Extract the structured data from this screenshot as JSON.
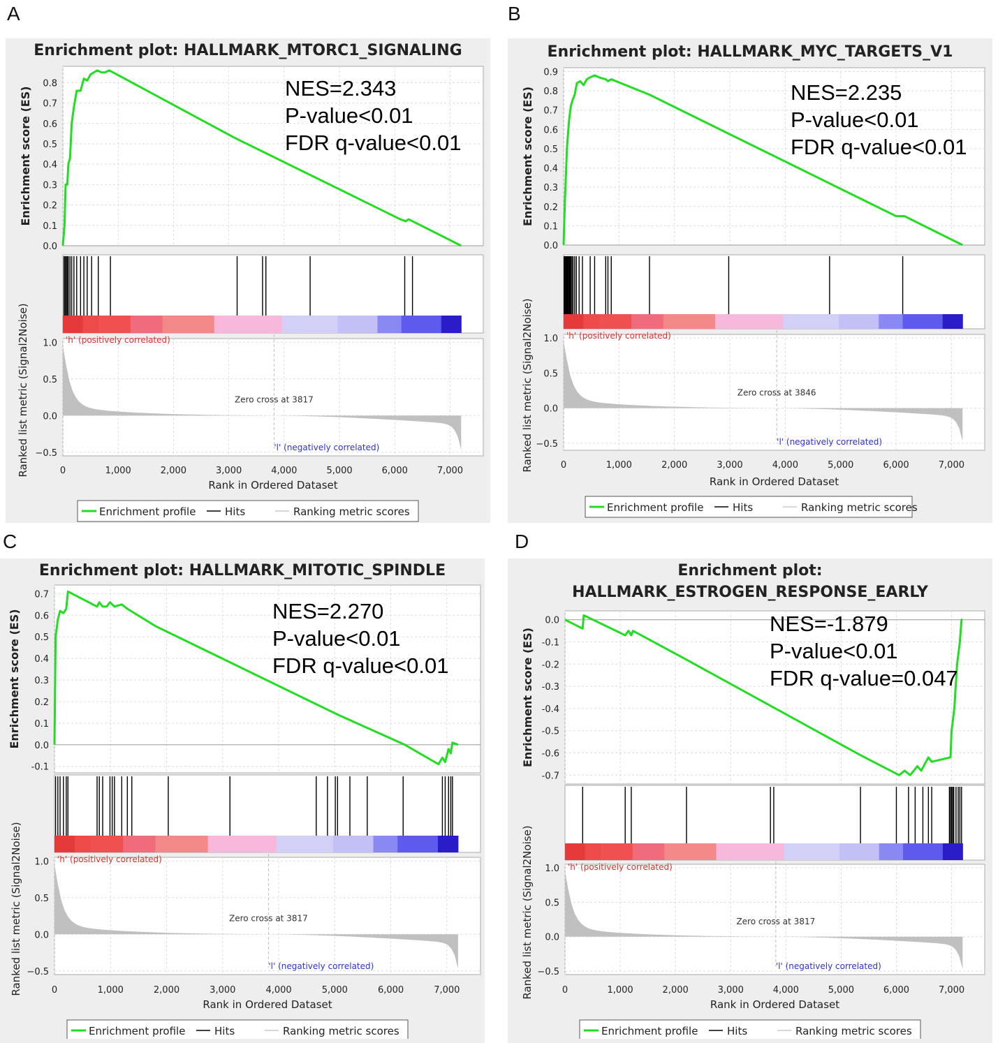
{
  "legend": {
    "enrichment_profile": "Enrichment profile",
    "hits": "Hits",
    "ranking_metric_scores": "Ranking metric scores"
  },
  "colors": {
    "enrichment_line": "#22dd22",
    "hits": "#000000",
    "ranking_fill": "#c0c0c0",
    "positive_label": "#e03030",
    "negative_label": "#3030d0"
  },
  "chart_data": [
    {
      "panel": "A",
      "type": "line",
      "title_lines": [
        "Enrichment plot: HALLMARK_MTORC1_SIGNALING"
      ],
      "stats": [
        "NES=2.343",
        "P-value<0.01",
        "FDR q-value<0.01"
      ],
      "ylabel": "Enrichment score (ES)",
      "ylabel_rank": "Ranked list metric (Signal2Noise)",
      "xlabel": "Rank in Ordered Dataset",
      "xlim": [
        0,
        7600
      ],
      "x_ticks": [
        "0",
        "1,000",
        "2,000",
        "3,000",
        "4,000",
        "5,000",
        "6,000",
        "7,000"
      ],
      "es_ylim": [
        0,
        0.88
      ],
      "es_ticks": [
        "0.0",
        "0.1",
        "0.2",
        "0.3",
        "0.4",
        "0.5",
        "0.6",
        "0.7",
        "0.8"
      ],
      "rank_ylim": [
        -0.55,
        1.05
      ],
      "rank_ticks": [
        "1.0",
        "0.5",
        "0.0",
        "-0.5"
      ],
      "positive_label": "'h' (positively correlated)",
      "negative_label": "'l' (negatively correlated)",
      "zero_cross_label": "Zero cross at 3817",
      "zero_cross": 3817,
      "n_genes": 7200,
      "es_points": [
        [
          0,
          0
        ],
        [
          30,
          0.1
        ],
        [
          50,
          0.3
        ],
        [
          80,
          0.3
        ],
        [
          100,
          0.4
        ],
        [
          130,
          0.43
        ],
        [
          160,
          0.6
        ],
        [
          200,
          0.68
        ],
        [
          250,
          0.76
        ],
        [
          320,
          0.76
        ],
        [
          380,
          0.82
        ],
        [
          440,
          0.81
        ],
        [
          500,
          0.84
        ],
        [
          560,
          0.85
        ],
        [
          620,
          0.86
        ],
        [
          700,
          0.85
        ],
        [
          760,
          0.85
        ],
        [
          840,
          0.86
        ],
        [
          3100,
          0.53
        ],
        [
          6100,
          0.13
        ],
        [
          6200,
          0.12
        ],
        [
          6250,
          0.13
        ],
        [
          7200,
          0.0
        ]
      ],
      "hits": [
        20,
        40,
        60,
        80,
        100,
        130,
        160,
        200,
        250,
        320,
        380,
        440,
        520,
        640,
        860,
        3150,
        3610,
        3670,
        4470,
        6180,
        6320
      ]
    },
    {
      "panel": "B",
      "type": "line",
      "title_lines": [
        "Enrichment plot: HALLMARK_MYC_TARGETS_V1"
      ],
      "stats": [
        "NES=2.235",
        "P-value<0.01",
        "FDR q-value<0.01"
      ],
      "ylabel": "Enrichment score (ES)",
      "ylabel_rank": "Ranked list metric (Signal2Noise)",
      "xlabel": "Rank in Ordered Dataset",
      "xlim": [
        0,
        7600
      ],
      "x_ticks": [
        "0",
        "1,000",
        "2,000",
        "3,000",
        "4,000",
        "5,000",
        "6,000",
        "7,000"
      ],
      "es_ylim": [
        0,
        0.92
      ],
      "es_ticks": [
        "0.0",
        "0.1",
        "0.2",
        "0.3",
        "0.4",
        "0.5",
        "0.6",
        "0.7",
        "0.8",
        "0.9"
      ],
      "rank_ylim": [
        -0.6,
        1.05
      ],
      "rank_ticks": [
        "1.0",
        "0.5",
        "0.0",
        "-0.5"
      ],
      "positive_label": "'h' (positively correlated)",
      "negative_label": "'l' (negatively correlated)",
      "zero_cross_label": "Zero cross at 3846",
      "zero_cross": 3846,
      "n_genes": 7200,
      "es_points": [
        [
          0,
          0
        ],
        [
          20,
          0.2
        ],
        [
          40,
          0.35
        ],
        [
          60,
          0.5
        ],
        [
          80,
          0.58
        ],
        [
          100,
          0.65
        ],
        [
          130,
          0.72
        ],
        [
          160,
          0.75
        ],
        [
          200,
          0.78
        ],
        [
          240,
          0.84
        ],
        [
          300,
          0.85
        ],
        [
          360,
          0.83
        ],
        [
          420,
          0.86
        ],
        [
          480,
          0.87
        ],
        [
          560,
          0.88
        ],
        [
          640,
          0.87
        ],
        [
          760,
          0.86
        ],
        [
          800,
          0.85
        ],
        [
          860,
          0.86
        ],
        [
          1550,
          0.78
        ],
        [
          6000,
          0.15
        ],
        [
          6150,
          0.15
        ],
        [
          7200,
          0.0
        ]
      ],
      "hits": [
        10,
        25,
        40,
        55,
        70,
        85,
        100,
        115,
        130,
        150,
        170,
        200,
        230,
        280,
        340,
        480,
        560,
        760,
        800,
        860,
        1550,
        2980,
        4800,
        6120
      ]
    },
    {
      "panel": "C",
      "type": "line",
      "title_lines": [
        "Enrichment plot: HALLMARK_MITOTIC_SPINDLE"
      ],
      "stats": [
        "NES=2.270",
        "P-value<0.01",
        "FDR q-value<0.01"
      ],
      "ylabel": "Enrichment score (ES)",
      "ylabel_rank": "Ranked list metric (Signal2Noise)",
      "xlabel": "Rank in Ordered Dataset",
      "xlim": [
        0,
        7600
      ],
      "x_ticks": [
        "0",
        "1,000",
        "2,000",
        "3,000",
        "4,000",
        "5,000",
        "6,000",
        "7,000"
      ],
      "es_ylim": [
        -0.13,
        0.74
      ],
      "es_ticks": [
        "-0.1",
        "0.0",
        "0.1",
        "0.2",
        "0.3",
        "0.4",
        "0.5",
        "0.6",
        "0.7"
      ],
      "rank_ylim": [
        -0.55,
        1.05
      ],
      "rank_ticks": [
        "1.0",
        "0.5",
        "0.0",
        "-0.5"
      ],
      "positive_label": "'h' (positively correlated)",
      "negative_label": "'l' (negatively correlated)",
      "zero_cross_label": "Zero cross at 3817",
      "zero_cross": 3817,
      "n_genes": 7200,
      "es_points": [
        [
          0,
          0
        ],
        [
          20,
          0.5
        ],
        [
          60,
          0.58
        ],
        [
          100,
          0.62
        ],
        [
          160,
          0.61
        ],
        [
          210,
          0.63
        ],
        [
          240,
          0.71
        ],
        [
          760,
          0.64
        ],
        [
          800,
          0.66
        ],
        [
          860,
          0.64
        ],
        [
          930,
          0.64
        ],
        [
          990,
          0.66
        ],
        [
          1070,
          0.64
        ],
        [
          1200,
          0.65
        ],
        [
          1300,
          0.63
        ],
        [
          1800,
          0.55
        ],
        [
          5050,
          0.14
        ],
        [
          6250,
          0.0
        ],
        [
          6850,
          -0.09
        ],
        [
          6920,
          -0.06
        ],
        [
          6970,
          -0.08
        ],
        [
          7030,
          -0.02
        ],
        [
          7070,
          -0.04
        ],
        [
          7100,
          0.01
        ],
        [
          7200,
          0.0
        ]
      ],
      "hits": [
        20,
        60,
        100,
        160,
        210,
        240,
        760,
        800,
        860,
        990,
        1030,
        1070,
        1200,
        1300,
        1380,
        2030,
        3130,
        4670,
        4870,
        5010,
        5050,
        5270,
        5580,
        6220,
        6920,
        6970,
        7030,
        7070,
        7100
      ]
    },
    {
      "panel": "D",
      "type": "line",
      "title_lines": [
        "Enrichment plot:",
        "HALLMARK_ESTROGEN_RESPONSE_EARLY"
      ],
      "stats": [
        "NES=-1.879",
        "P-value<0.01",
        "FDR q-value=0.047"
      ],
      "ylabel": "Enrichment score (ES)",
      "ylabel_rank": "Ranked list metric (Signal2Noise)",
      "xlabel": "Rank in Ordered Dataset",
      "xlim": [
        0,
        7600
      ],
      "x_ticks": [
        "0",
        "1,000",
        "2,000",
        "3,000",
        "4,000",
        "5,000",
        "6,000",
        "7,000"
      ],
      "es_ylim": [
        -0.74,
        0.04
      ],
      "es_ticks": [
        "0.0",
        "-0.1",
        "-0.2",
        "-0.3",
        "-0.4",
        "-0.5",
        "-0.6",
        "-0.7"
      ],
      "rank_ylim": [
        -0.55,
        1.05
      ],
      "rank_ticks": [
        "1.0",
        "0.5",
        "0.0",
        "-0.5"
      ],
      "positive_label": "'h' (positively correlated)",
      "negative_label": "'l' (negatively correlated)",
      "zero_cross_label": "Zero cross at 3817",
      "zero_cross": 3817,
      "n_genes": 7200,
      "es_points": [
        [
          0,
          0
        ],
        [
          320,
          -0.04
        ],
        [
          340,
          0.02
        ],
        [
          1090,
          -0.07
        ],
        [
          1150,
          -0.05
        ],
        [
          1200,
          -0.07
        ],
        [
          1230,
          -0.05
        ],
        [
          2200,
          -0.18
        ],
        [
          5350,
          -0.61
        ],
        [
          6050,
          -0.7
        ],
        [
          6150,
          -0.68
        ],
        [
          6250,
          -0.7
        ],
        [
          6380,
          -0.66
        ],
        [
          6450,
          -0.68
        ],
        [
          6580,
          -0.62
        ],
        [
          6640,
          -0.64
        ],
        [
          6980,
          -0.62
        ],
        [
          7000,
          -0.5
        ],
        [
          7050,
          -0.4
        ],
        [
          7100,
          -0.2
        ],
        [
          7150,
          -0.1
        ],
        [
          7180,
          0.0
        ],
        [
          7200,
          0.0
        ]
      ],
      "hits": [
        320,
        1090,
        1200,
        2200,
        3720,
        3780,
        5350,
        6000,
        6220,
        6340,
        6480,
        6580,
        6640,
        6960,
        6980,
        7000,
        7020,
        7040,
        7080,
        7120,
        7150,
        7180
      ]
    }
  ]
}
